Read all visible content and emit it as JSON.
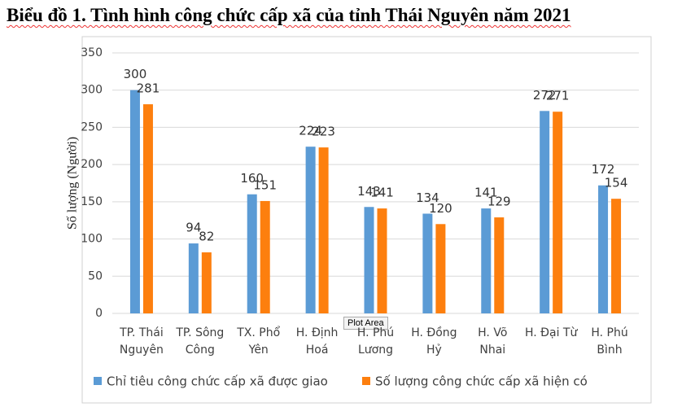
{
  "chart_data": {
    "type": "bar",
    "title": "Biểu đồ 1. Tình hình công chức cấp xã của tỉnh Thái Nguyên năm 2021",
    "y_label": "Số lượng (Người)",
    "tooltip": "Plot Area",
    "categories": [
      "TP. Thái Nguyên",
      "TP. Sông Công",
      "TX. Phổ Yên",
      "H. Định Hoá",
      "H. Phú Lương",
      "H. Đồng Hỷ",
      "H. Võ Nhai",
      "H. Đại Từ",
      "H. Phú Bình"
    ],
    "series": [
      {
        "name": "Chỉ tiêu công chức cấp xã được giao",
        "color": "#5b9bd5",
        "values": [
          300,
          94,
          160,
          224,
          143,
          134,
          141,
          272,
          172
        ]
      },
      {
        "name": "Số lượng công chức cấp xã hiện có",
        "color": "#fd7f0e",
        "values": [
          281,
          82,
          151,
          223,
          141,
          120,
          129,
          271,
          154
        ]
      }
    ],
    "ylim": [
      0,
      350
    ],
    "yticks": [
      0,
      50,
      100,
      150,
      200,
      250,
      300,
      350
    ],
    "grid": true,
    "legend": "bottom"
  }
}
